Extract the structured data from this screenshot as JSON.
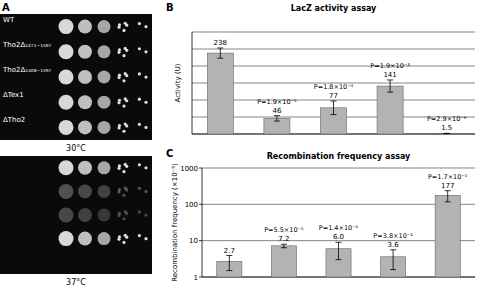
{
  "panel_labels": [
    "A",
    "B",
    "C"
  ],
  "spot_assay": {
    "strains": [
      "WT",
      "Tho2Δ₁₂₇₁₋₁₅₉₇",
      "Tho2Δ₁₄₀₈₋₁₅₉₇",
      "ΔTex1",
      "ΔTho2"
    ],
    "conditions": [
      "30°C",
      "37°C"
    ]
  },
  "chart_data": [
    {
      "type": "bar",
      "title": "LacZ activity assay",
      "ylabel": "Activity (U)",
      "categories": [
        null,
        null,
        null,
        null,
        null
      ],
      "values": [
        238,
        46,
        77,
        141,
        1.5
      ],
      "errors": [
        15,
        8,
        20,
        18,
        0.5
      ],
      "annotations": [
        null,
        "P=1.9×10⁻⁵",
        "P=1.8×10⁻⁴",
        "P=1.9×10⁻³",
        "P=2.9×10⁻⁶"
      ],
      "ylim": [
        0,
        300
      ],
      "yticks": [
        0,
        50,
        100,
        150,
        200,
        250,
        300
      ],
      "grid": true,
      "tick_labels": false,
      "data_labels": true,
      "color": "#b3b3b3"
    },
    {
      "type": "bar",
      "title": "Recombination frequency assay",
      "ylabel": "Recombination frequency (×10⁻⁵)",
      "categories": [
        null,
        null,
        null,
        null,
        null
      ],
      "values": [
        2.7,
        7.2,
        6.0,
        3.6,
        177
      ],
      "value_labels": [
        "2.7",
        "7.2",
        "6.0",
        "3.6",
        "177"
      ],
      "errors": [
        1.2,
        0.8,
        3.0,
        2.0,
        60
      ],
      "annotations": [
        null,
        "P=5.5×10⁻⁵",
        "P=1.4×10⁻¹",
        "P=3.8×10⁻¹",
        "P=1.7×10⁻⁵"
      ],
      "ylim": [
        1,
        1000
      ],
      "yticks": [
        1,
        10,
        100,
        1000
      ],
      "log": "y",
      "grid": true,
      "tick_labels": "y",
      "data_labels": true,
      "color": "#b3b3b3"
    }
  ]
}
